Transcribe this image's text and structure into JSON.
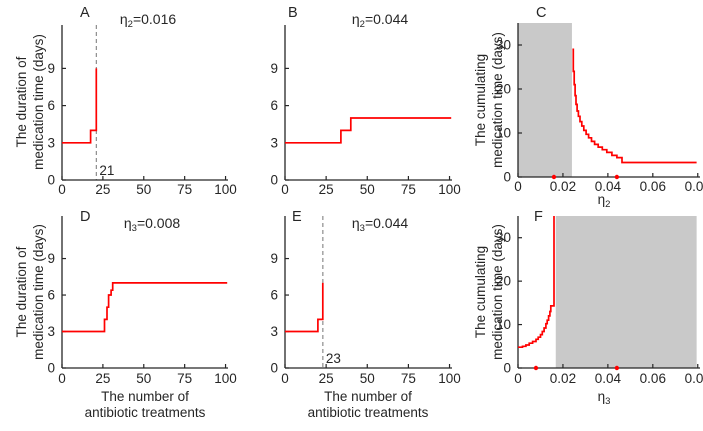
{
  "figure": {
    "description": "Six-panel figure of antibiotic medication time",
    "panel_letters": [
      "A",
      "B",
      "C",
      "D",
      "E",
      "F"
    ]
  },
  "colors": {
    "curve_red": "#ff0000",
    "shade_gray": "#c9c9c9",
    "axis": "#262626",
    "dashed_gray": "#8c8c8c",
    "background": "#ffffff"
  },
  "chart_data": [
    {
      "id": "A",
      "type": "line",
      "panel_label": "A",
      "title": "η2=0.016",
      "draw": "linear",
      "xlim": [
        0,
        101.5
      ],
      "ylim": [
        0,
        12.5
      ],
      "xticks": [
        0,
        25,
        50,
        75,
        100
      ],
      "yticks": [
        0,
        3,
        6,
        9
      ],
      "points": [
        [
          0,
          3
        ],
        [
          17.5,
          3
        ],
        [
          17.5,
          4
        ],
        [
          21,
          4
        ],
        [
          21,
          9
        ]
      ],
      "vline": {
        "x": 21,
        "label": "21"
      },
      "ylabel_lines": [
        "The duration of",
        "medication time (days)"
      ],
      "xlabel_lines": []
    },
    {
      "id": "B",
      "type": "line",
      "panel_label": "B",
      "title": "η2=0.044",
      "draw": "linear",
      "xlim": [
        0,
        101.5
      ],
      "ylim": [
        0,
        12.5
      ],
      "xticks": [
        0,
        25,
        50,
        75,
        100
      ],
      "yticks": [
        0,
        3,
        6,
        9
      ],
      "points": [
        [
          0,
          3
        ],
        [
          34,
          3
        ],
        [
          34,
          4
        ],
        [
          40,
          4
        ],
        [
          40,
          5
        ],
        [
          101,
          5
        ]
      ],
      "vline": null,
      "ylabel_lines": [],
      "xlabel_lines": []
    },
    {
      "id": "C",
      "type": "line",
      "panel_label": "C",
      "title": "",
      "draw": "step",
      "xlim": [
        0,
        0.081
      ],
      "ylim": [
        0,
        35
      ],
      "xticks": [
        0,
        0.02,
        0.04,
        0.06,
        0.08
      ],
      "yticks": [
        0,
        10,
        20,
        30
      ],
      "steps": [
        [
          0.0242,
          29
        ],
        [
          0.0246,
          24
        ],
        [
          0.025,
          21
        ],
        [
          0.0254,
          18.5
        ],
        [
          0.0258,
          16.5
        ],
        [
          0.0263,
          15
        ],
        [
          0.0269,
          13.8
        ],
        [
          0.0276,
          12.6
        ],
        [
          0.0284,
          11.6
        ],
        [
          0.0293,
          10.6
        ],
        [
          0.0303,
          9.7
        ],
        [
          0.0314,
          8.9
        ],
        [
          0.0327,
          8.1
        ],
        [
          0.0341,
          7.4
        ],
        [
          0.0357,
          6.8
        ],
        [
          0.0375,
          6.2
        ],
        [
          0.0395,
          5.6
        ],
        [
          0.0418,
          4.9
        ],
        [
          0.044,
          4.4
        ],
        [
          0.0463,
          3.3
        ]
      ],
      "end_x": 0.0795,
      "shade": {
        "x0": 0,
        "x1": 0.024
      },
      "markers": [
        0.016,
        0.044
      ],
      "ylabel_lines": [
        "The cumulating",
        "medication time (days)"
      ],
      "xlabel_lines": [
        "η2"
      ]
    },
    {
      "id": "D",
      "type": "line",
      "panel_label": "D",
      "title": "η3=0.008",
      "draw": "linear",
      "xlim": [
        0,
        101.5
      ],
      "ylim": [
        0,
        12.5
      ],
      "xticks": [
        0,
        25,
        50,
        75,
        100
      ],
      "yticks": [
        0,
        3,
        6,
        9
      ],
      "points": [
        [
          0,
          3
        ],
        [
          26,
          3
        ],
        [
          26,
          4
        ],
        [
          27.5,
          4
        ],
        [
          27.5,
          5
        ],
        [
          28.5,
          5
        ],
        [
          28.5,
          6
        ],
        [
          30,
          6
        ],
        [
          30,
          6.4
        ],
        [
          31,
          6.4
        ],
        [
          31,
          7
        ],
        [
          101,
          7
        ]
      ],
      "vline": null,
      "ylabel_lines": [
        "The duration of",
        "medication time (days)"
      ],
      "xlabel_lines": [
        "The number of",
        "antibiotic treatments"
      ]
    },
    {
      "id": "E",
      "type": "line",
      "panel_label": "E",
      "title": "η3=0.044",
      "draw": "linear",
      "xlim": [
        0,
        101.5
      ],
      "ylim": [
        0,
        12.5
      ],
      "xticks": [
        0,
        25,
        50,
        75,
        100
      ],
      "yticks": [
        0,
        3,
        6,
        9
      ],
      "points": [
        [
          0,
          3
        ],
        [
          20,
          3
        ],
        [
          20,
          4
        ],
        [
          23,
          4
        ],
        [
          23,
          7
        ]
      ],
      "vline": {
        "x": 23,
        "label": "23"
      },
      "ylabel_lines": [],
      "xlabel_lines": [
        "The number of",
        "antibiotic treatments"
      ]
    },
    {
      "id": "F",
      "type": "line",
      "panel_label": "F",
      "title": "",
      "draw": "step",
      "xlim": [
        0,
        0.081
      ],
      "ylim": [
        0,
        35
      ],
      "xticks": [
        0,
        0.02,
        0.04,
        0.06,
        0.08
      ],
      "yticks": [
        0,
        10,
        20,
        30
      ],
      "steps": [
        [
          0,
          4.8
        ],
        [
          0.002,
          5.0
        ],
        [
          0.0035,
          5.3
        ],
        [
          0.005,
          5.7
        ],
        [
          0.0065,
          6.1
        ],
        [
          0.008,
          6.6
        ],
        [
          0.009,
          7.1
        ],
        [
          0.01,
          7.7
        ],
        [
          0.0108,
          8.4
        ],
        [
          0.0116,
          9.2
        ],
        [
          0.0124,
          10.2
        ],
        [
          0.013,
          11.0
        ],
        [
          0.0136,
          12.0
        ],
        [
          0.0142,
          13.0
        ],
        [
          0.0146,
          14.3
        ],
        [
          0.016,
          35
        ]
      ],
      "end_x": 0.016,
      "shade": {
        "x0": 0.0168,
        "x1": 0.0795
      },
      "markers": [
        0.008,
        0.044
      ],
      "ylabel_lines": [
        "The cumulating",
        "medication time (days)"
      ],
      "xlabel_lines": [
        "η3"
      ]
    }
  ]
}
